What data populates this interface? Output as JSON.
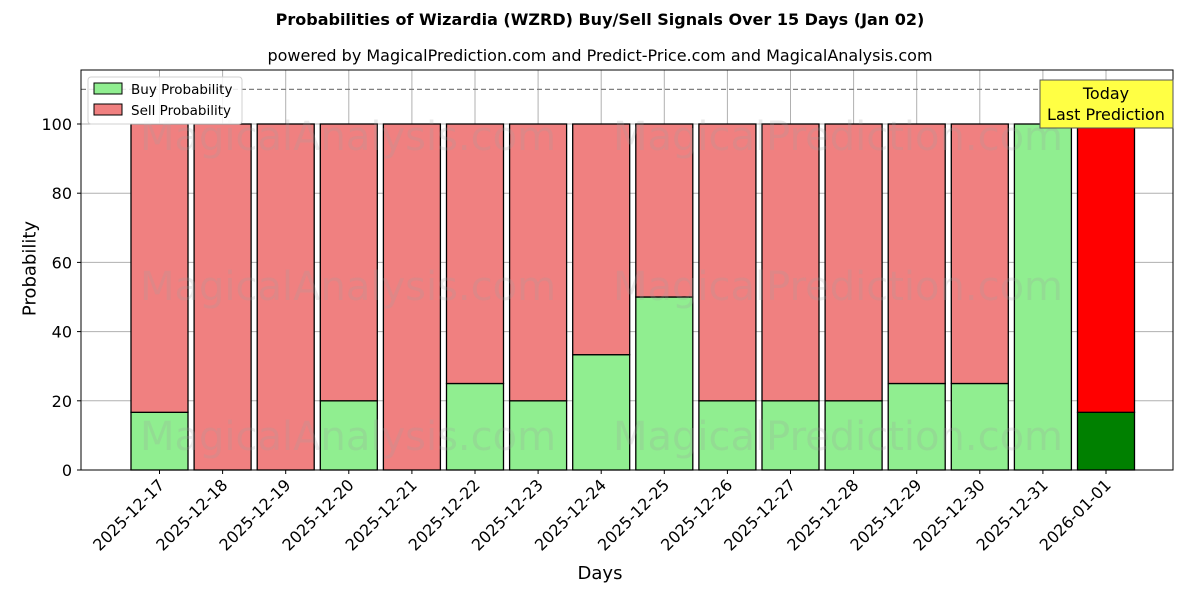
{
  "title": "Probabilities of Wizardia (WZRD) Buy/Sell Signals Over 15 Days (Jan 02)",
  "subtitle": "powered by MagicalPrediction.com and Predict-Price.com and MagicalAnalysis.com",
  "watermarks": [
    "MagicalAnalysis.com",
    "MagicalPrediction.com"
  ],
  "annotation": {
    "line1": "Today",
    "line2": "Last Prediction"
  },
  "colors": {
    "buy": "#90ee90",
    "sell": "#f08080",
    "buy_today": "#008000",
    "sell_today": "#ff0000",
    "annotation_bg": "#ffff44"
  },
  "chart_data": {
    "type": "bar",
    "stacked": true,
    "title": "Probabilities of Wizardia (WZRD) Buy/Sell Signals Over 15 Days (Jan 02)",
    "subtitle": "powered by MagicalPrediction.com and Predict-Price.com and MagicalAnalysis.com",
    "xlabel": "Days",
    "ylabel": "Probability",
    "ylim": [
      0,
      115
    ],
    "yticks": [
      0,
      20,
      40,
      60,
      80,
      100
    ],
    "grid": true,
    "reference_line": 110,
    "legend_position": "upper left",
    "categories": [
      "2025-12-17",
      "2025-12-18",
      "2025-12-19",
      "2025-12-20",
      "2025-12-21",
      "2025-12-22",
      "2025-12-23",
      "2025-12-24",
      "2025-12-25",
      "2025-12-26",
      "2025-12-27",
      "2025-12-28",
      "2025-12-29",
      "2025-12-30",
      "2025-12-31",
      "2026-01-01"
    ],
    "series": [
      {
        "name": "Buy Probability",
        "values": [
          16.67,
          0,
          0,
          20,
          0,
          25,
          20,
          33.33,
          50,
          20,
          20,
          20,
          25,
          25,
          100,
          16.67
        ]
      },
      {
        "name": "Sell Probability",
        "values": [
          83.33,
          100,
          100,
          80,
          100,
          75,
          80,
          66.67,
          50,
          80,
          80,
          80,
          75,
          75,
          0,
          83.33
        ]
      }
    ]
  }
}
